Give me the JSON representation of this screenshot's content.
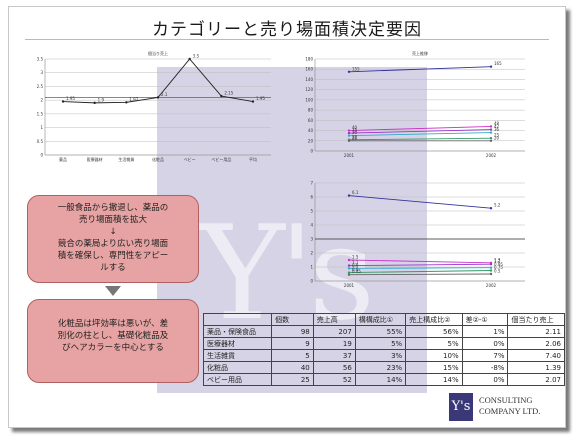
{
  "slide": {
    "title": "カテゴリーと売り場面積決定要因",
    "watermark": "Y's",
    "callout1": [
      "一般食品から撤退し、薬品の",
      "売り場面積を拡大",
      "↓",
      "競合の薬局より広い売り場面",
      "積を確保し、専門性をアピー",
      "ルする"
    ],
    "callout2": [
      "化粧品は坪効率は悪いが、差",
      "別化の柱とし、基礎化粧品及",
      "びヘアカラーを中心とする"
    ],
    "company": {
      "line1": "CONSULTING",
      "line2": "COMPANY LTD.",
      "logo": "Y's"
    }
  },
  "table": {
    "headers": [
      "",
      "個数",
      "売上高",
      "構構成比①",
      "売上構成比②",
      "差②-①",
      "個当たり売上"
    ],
    "rows": [
      [
        "薬品・保険食品",
        "98",
        "207",
        "55%",
        "56%",
        "1%",
        "2.11"
      ],
      [
        "医療器材",
        "9",
        "19",
        "5%",
        "5%",
        "0%",
        "2.06"
      ],
      [
        "生活雑貨",
        "5",
        "37",
        "3%",
        "10%",
        "7%",
        "7.40"
      ],
      [
        "化粧品",
        "40",
        "56",
        "23%",
        "15%",
        "-8%",
        "1.39"
      ],
      [
        "ベビー用品",
        "25",
        "52",
        "14%",
        "14%",
        "0%",
        "2.07"
      ]
    ]
  },
  "chart_data": [
    {
      "type": "line",
      "title": "個当り売上",
      "categories": [
        "薬品",
        "医療器材",
        "生活雑貨",
        "化粧品",
        "ベビー",
        "ベビー用品",
        "平均"
      ],
      "series": [
        {
          "values": [
            1.95,
            1.9,
            1.92,
            2.1,
            3.5,
            2.15,
            1.95
          ]
        }
      ],
      "reference_line": 2.1,
      "ylim": [
        0,
        3.5
      ]
    },
    {
      "type": "line",
      "title": "売上推移",
      "x": [
        "2001",
        "2002"
      ],
      "series": [
        {
          "values": [
            155,
            165
          ]
        },
        {
          "values": [
            40,
            48
          ]
        },
        {
          "values": [
            35,
            42
          ]
        },
        {
          "values": [
            30,
            36
          ]
        },
        {
          "values": [
            22,
            25
          ]
        },
        {
          "values": [
            20,
            20
          ]
        }
      ],
      "ylim": [
        0,
        180
      ]
    },
    {
      "type": "line",
      "x": [
        "2001",
        "2002"
      ],
      "series": [
        {
          "values": [
            6.1,
            5.2
          ]
        },
        {
          "values": [
            1.5,
            1.3
          ]
        },
        {
          "values": [
            1.1,
            1.2
          ]
        },
        {
          "values": [
            0.9,
            0.95
          ]
        },
        {
          "values": [
            0.6,
            0.75
          ]
        },
        {
          "values": [
            0.45,
            0.5
          ]
        }
      ],
      "reference_line": 3.0,
      "ylim": [
        0,
        7
      ]
    }
  ]
}
